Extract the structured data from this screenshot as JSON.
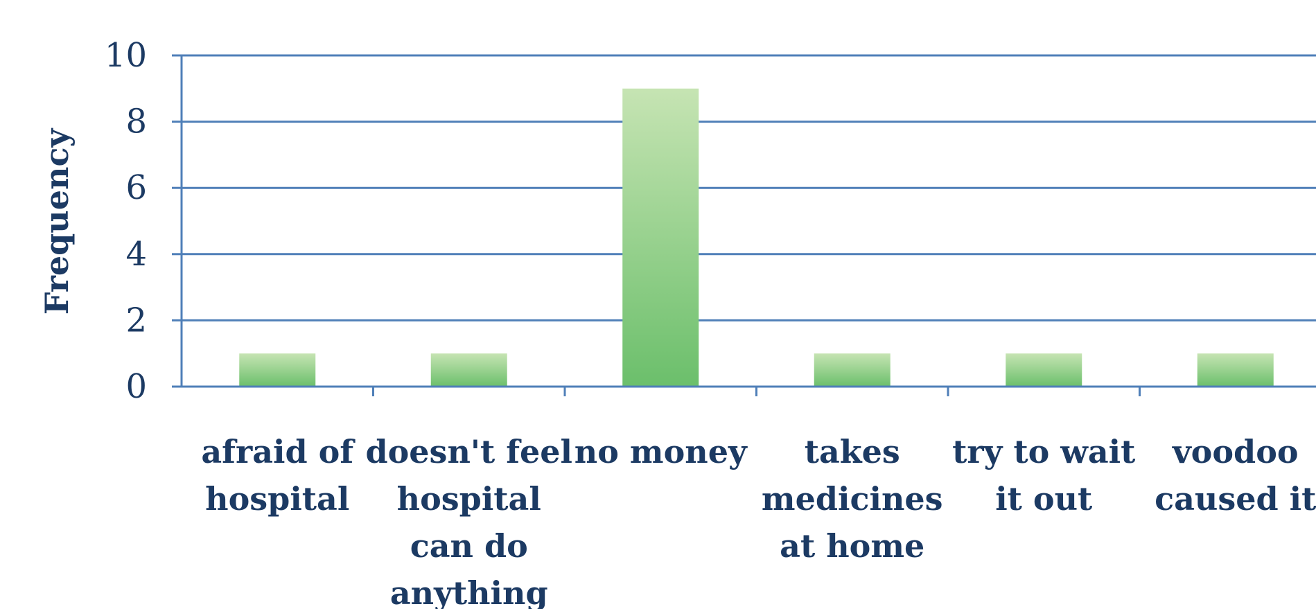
{
  "chart_data": {
    "type": "bar",
    "categories": [
      [
        "afraid of",
        "hospital"
      ],
      [
        "doesn't feel",
        "hospital",
        "can do",
        "anything"
      ],
      [
        "no money"
      ],
      [
        "takes",
        "medicines",
        "at home"
      ],
      [
        "try to wait",
        "it out"
      ],
      [
        "voodoo",
        "caused it"
      ]
    ],
    "values": [
      1,
      1,
      9,
      1,
      1,
      1
    ],
    "ylabel": "Frequency",
    "xlabel": "",
    "ylim": [
      0,
      10
    ],
    "yticks": [
      0,
      2,
      4,
      6,
      8,
      10
    ],
    "grid": true,
    "colors": {
      "bar_top": "#c6e4b3",
      "bar_bottom": "#6bbf6b",
      "grid": "#4f7fb8",
      "axis": "#4f7fb8",
      "text": "#1c3a63"
    }
  }
}
